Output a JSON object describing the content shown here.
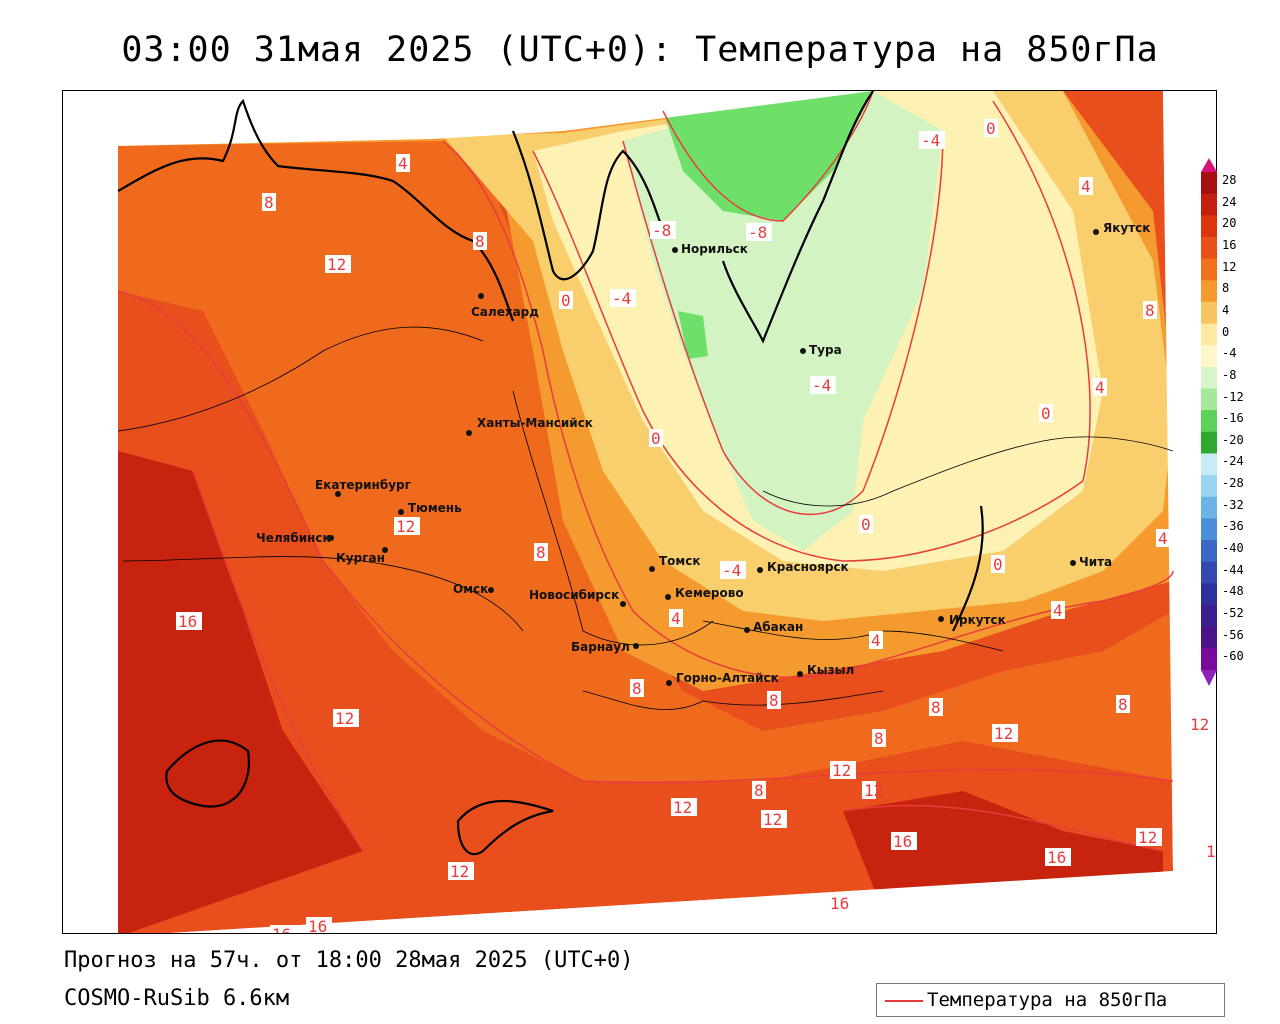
{
  "header": {
    "title": "03:00 31мая 2025 (UTC+0): Температура на 850гПа"
  },
  "footer": {
    "forecast": "Прогноз на 57ч. от 18:00 28мая 2025 (UTC+0)",
    "model": "COSMO-RuSib 6.6км"
  },
  "legend": {
    "line_label": "Температура на 850гПа",
    "line_color": "#e83c3c"
  },
  "scale": {
    "levels": [
      "28",
      "24",
      "20",
      "16",
      "12",
      "8",
      "4",
      "0",
      "-4",
      "-8",
      "-12",
      "-16",
      "-20",
      "-24",
      "-28",
      "-32",
      "-36",
      "-40",
      "-44",
      "-48",
      "-52",
      "-56",
      "-60"
    ],
    "colors": [
      "#a50f0f",
      "#c41e0e",
      "#d93610",
      "#e8501a",
      "#f0701e",
      "#f59a2e",
      "#f8c462",
      "#fde9a0",
      "#fef8c8",
      "#d8f4c8",
      "#a6e89a",
      "#5cd25a",
      "#2ea82e",
      "#c8ecf4",
      "#9ad4ef",
      "#6cb4e6",
      "#4a90d8",
      "#3a68c4",
      "#3448b0",
      "#30309c",
      "#3a1e90",
      "#4a1488",
      "#7a0a9a"
    ]
  },
  "cities": [
    {
      "name": "Норильск"
    },
    {
      "name": "Салехард"
    },
    {
      "name": "Тура"
    },
    {
      "name": "Якутск"
    },
    {
      "name": "Ханты-Мансийск"
    },
    {
      "name": "Екатеринбург"
    },
    {
      "name": "Тюмень"
    },
    {
      "name": "Челябинск"
    },
    {
      "name": "Курган"
    },
    {
      "name": "Омск"
    },
    {
      "name": "Новосибирск"
    },
    {
      "name": "Томск"
    },
    {
      "name": "Кемерово"
    },
    {
      "name": "Красноярск"
    },
    {
      "name": "Абакан"
    },
    {
      "name": "Барнаул"
    },
    {
      "name": "Горно-Алтайск"
    },
    {
      "name": "Кызыл"
    },
    {
      "name": "Иркутск"
    },
    {
      "name": "Чита"
    }
  ],
  "contour_labels": [
    "-8",
    "-8",
    "-4",
    "-4",
    "-4",
    "-4",
    "0",
    "0",
    "0",
    "0",
    "0",
    "0",
    "4",
    "4",
    "4",
    "4",
    "4",
    "4",
    "4",
    "8",
    "8",
    "8",
    "8",
    "8",
    "8",
    "8",
    "8",
    "8",
    "8",
    "12",
    "12",
    "12",
    "12",
    "12",
    "12",
    "12",
    "12",
    "12",
    "12",
    "12",
    "16",
    "16",
    "16",
    "16",
    "16",
    "16",
    "1"
  ]
}
